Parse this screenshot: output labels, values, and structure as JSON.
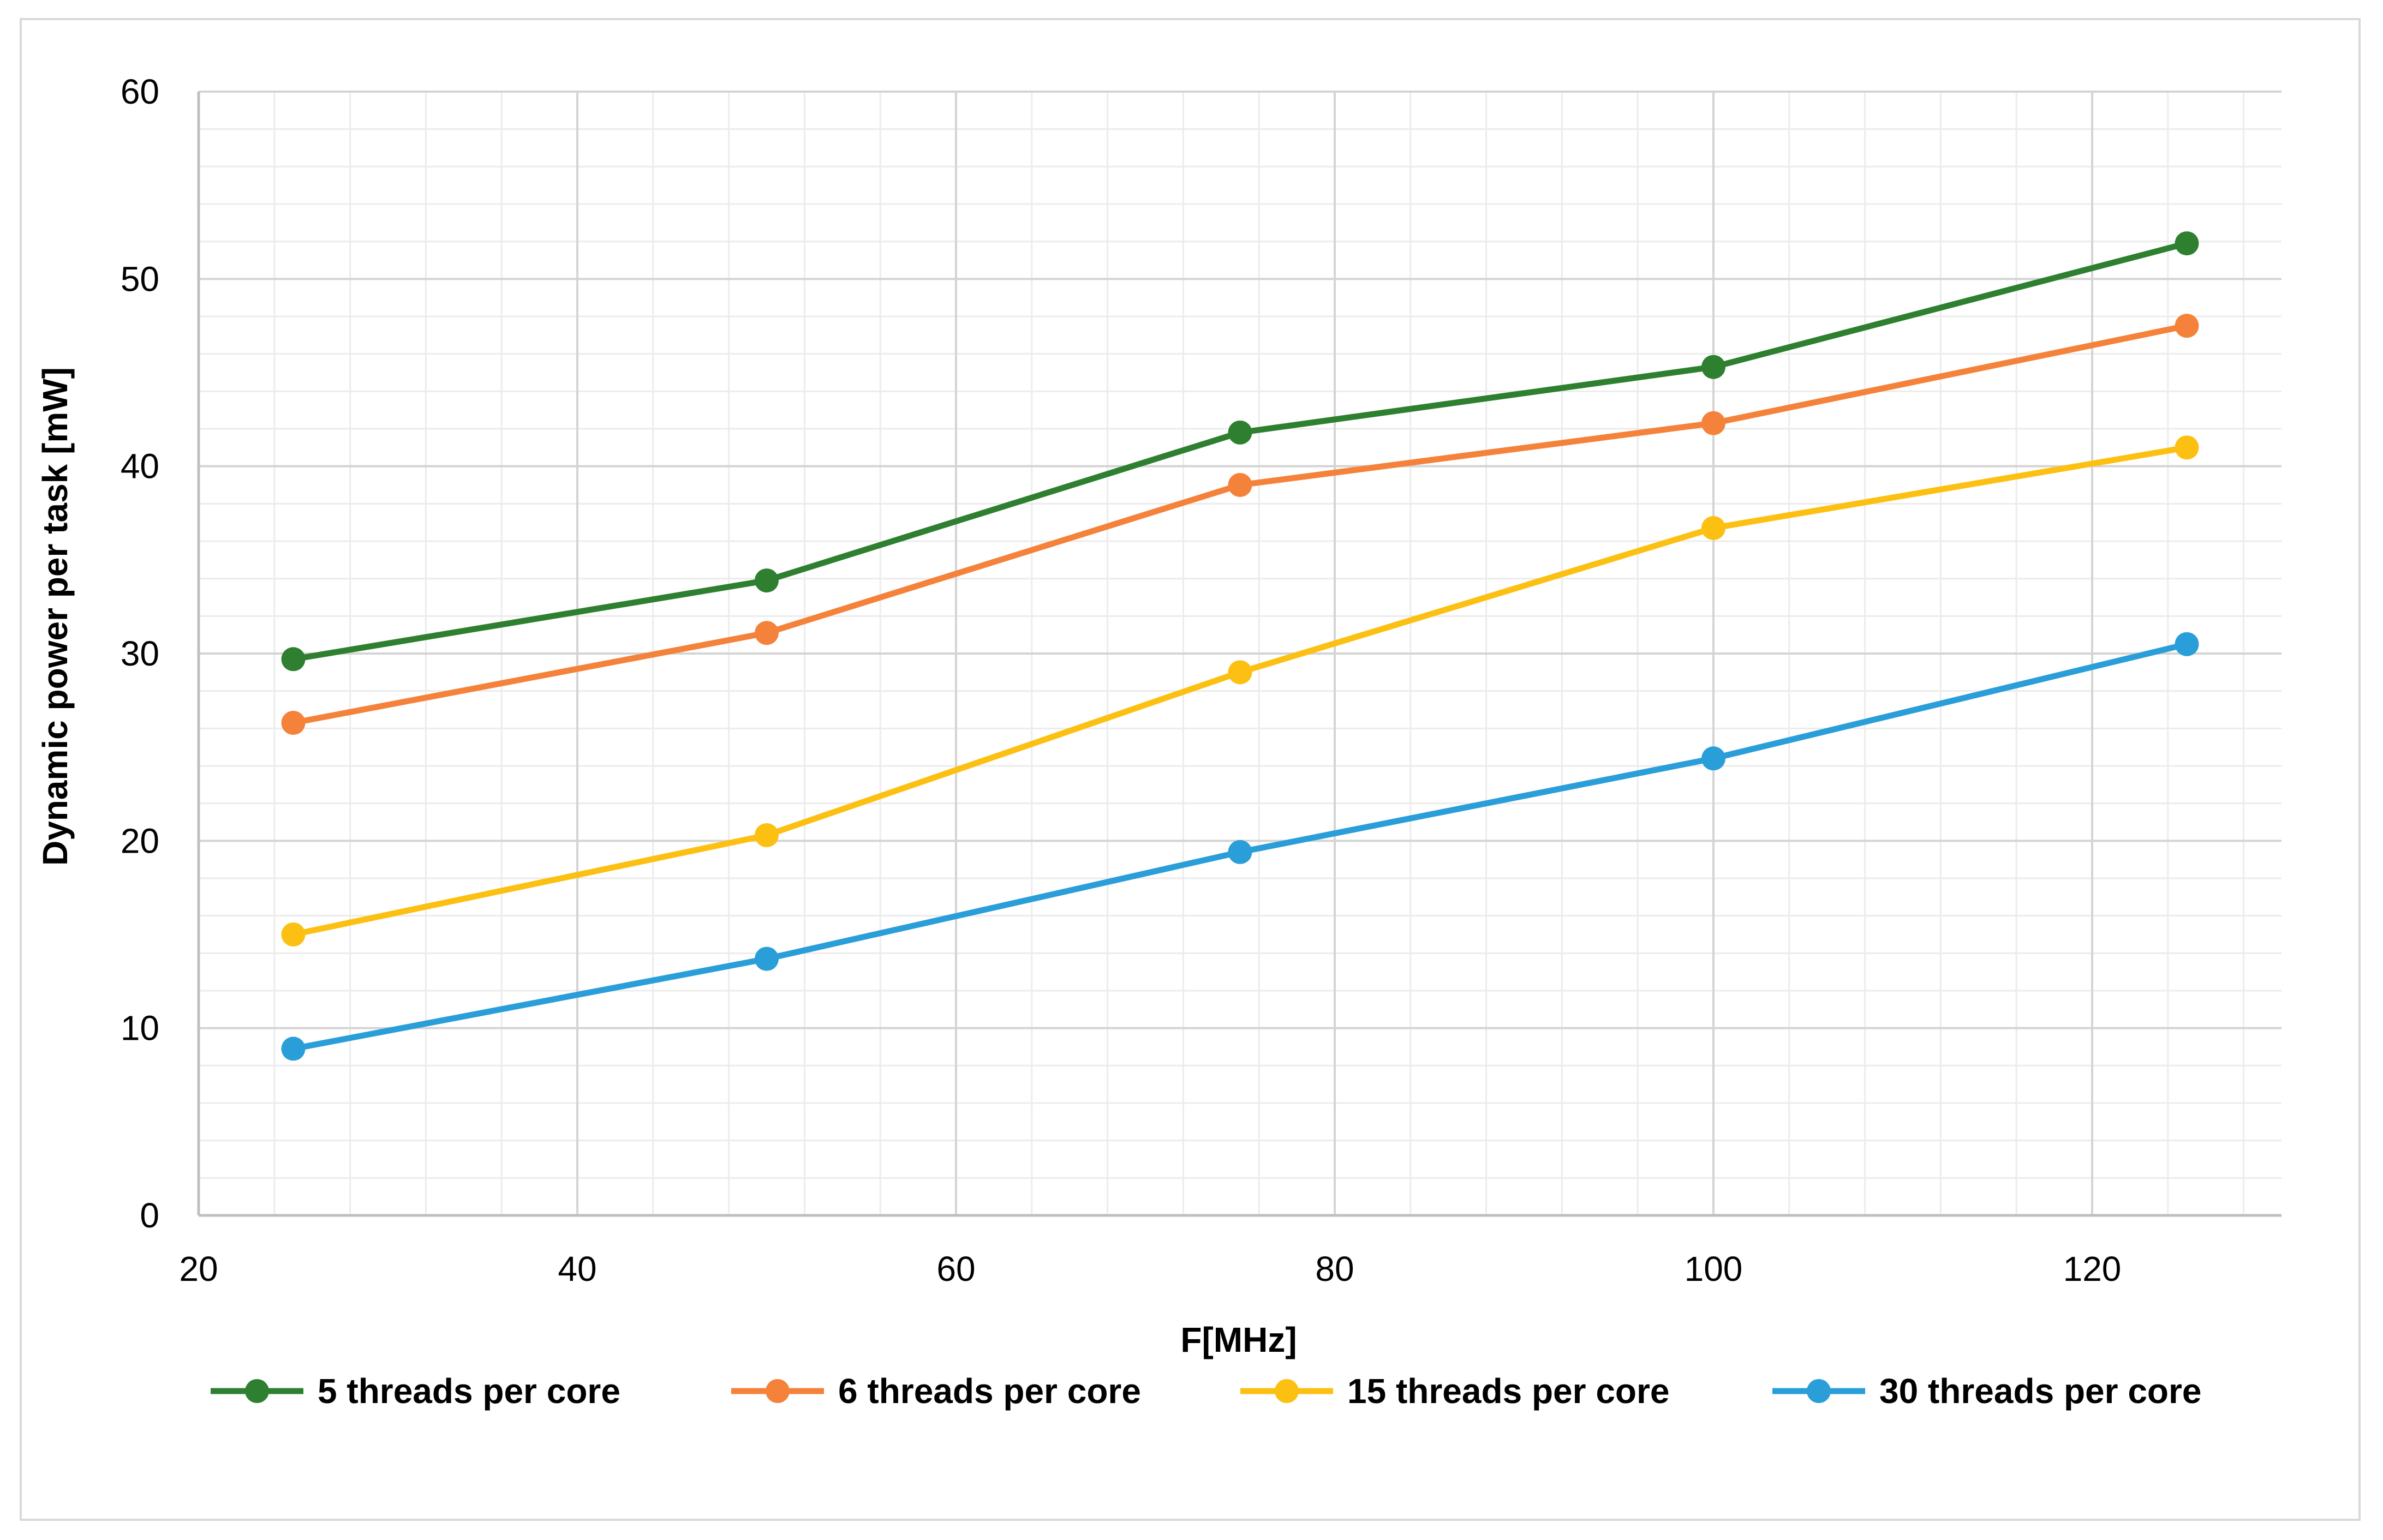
{
  "chart_data": {
    "type": "line",
    "title": "",
    "xlabel": "F[MHz]",
    "ylabel": "Dynamic power per task [mW]",
    "xlim": [
      20,
      130
    ],
    "ylim": [
      0,
      60
    ],
    "xticks": [
      20,
      40,
      60,
      80,
      100,
      120
    ],
    "yticks": [
      0,
      10,
      20,
      30,
      40,
      50,
      60
    ],
    "x_minor_step": 4,
    "y_minor_step": 2,
    "grid": true,
    "legend_position": "bottom",
    "x": [
      25,
      50,
      75,
      100,
      125
    ],
    "series": [
      {
        "name": "5 threads per core",
        "color": "#2e8030",
        "values": [
          29.7,
          33.9,
          41.8,
          45.3,
          51.9
        ]
      },
      {
        "name": "6 threads per core",
        "color": "#f5823a",
        "values": [
          26.3,
          31.1,
          39.0,
          42.3,
          47.5
        ]
      },
      {
        "name": "15 threads per core",
        "color": "#fcc012",
        "values": [
          15.0,
          20.3,
          29.0,
          36.7,
          41.0
        ]
      },
      {
        "name": "30 threads per core",
        "color": "#2a9ed8",
        "values": [
          8.9,
          13.7,
          19.4,
          24.4,
          30.5
        ]
      }
    ]
  }
}
